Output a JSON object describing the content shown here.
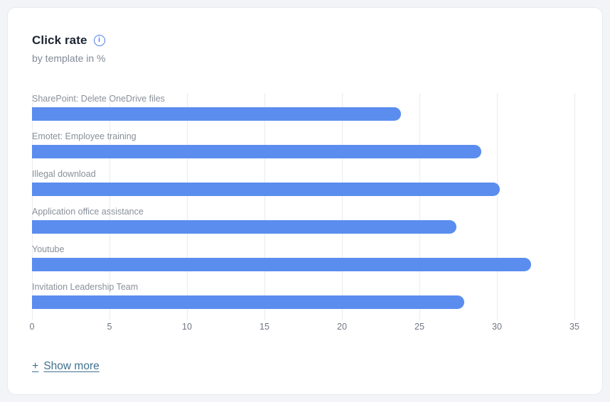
{
  "card": {
    "title": "Click rate",
    "subtitle": "by template in %",
    "show_more_plus": "+",
    "show_more_label": "Show more",
    "info_glyph": "i"
  },
  "colors": {
    "bar": "#5a8dee",
    "accent_info": "#4c7cec",
    "show_more": "#40718f",
    "gridline": "#e9ebee",
    "page_background": "#f2f4f7",
    "card_background": "#ffffff"
  },
  "chart_data": {
    "type": "bar",
    "orientation": "horizontal",
    "title": "Click rate",
    "subtitle": "by template in %",
    "categories": [
      "SharePoint: Delete OneDrive files",
      "Emotet: Employee training",
      "Illegal download",
      "Application office assistance",
      "Youtube",
      "Invitation Leadership Team"
    ],
    "values": [
      23.8,
      29.0,
      30.2,
      27.4,
      32.2,
      27.9
    ],
    "xlabel": "",
    "ylabel": "",
    "xlim": [
      0,
      35
    ],
    "x_ticks": [
      0,
      5,
      10,
      15,
      20,
      25,
      30,
      35
    ],
    "grid": true,
    "legend": false,
    "bar_color": "#5a8dee"
  }
}
